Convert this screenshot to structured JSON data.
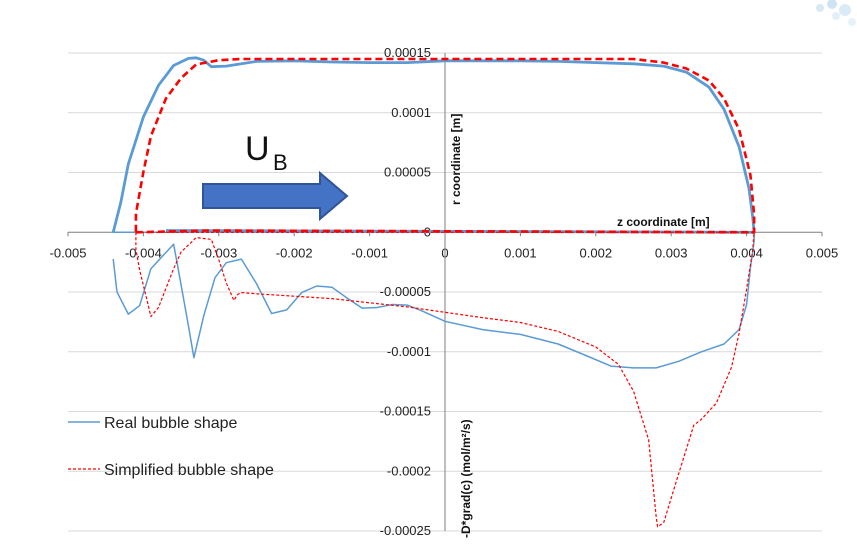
{
  "chart_data": {
    "type": "line",
    "xlim": [
      -0.005,
      0.005
    ],
    "ylim": [
      -0.00025,
      0.00015
    ],
    "x_ticks": [
      "-0.005",
      "-0.004",
      "-0.003",
      "-0.002",
      "-0.001",
      "0",
      "0.001",
      "0.002",
      "0.003",
      "0.004",
      "0.005"
    ],
    "y_ticks": [
      "0.00015",
      "0.0001",
      "0.00005",
      "0",
      "-0.00005",
      "-0.0001",
      "-0.00015",
      "-0.0002",
      "-0.00025"
    ],
    "x_tick_values": [
      -0.005,
      -0.004,
      -0.003,
      -0.002,
      -0.001,
      0,
      0.001,
      0.002,
      0.003,
      0.004,
      0.005
    ],
    "y_tick_values": [
      0.00015,
      0.0001,
      5e-05,
      0,
      -5e-05,
      -0.0001,
      -0.00015,
      -0.0002,
      -0.00025
    ],
    "xlabel": "z coordinate [m]",
    "ylabel_upper": "r coordinate [m]",
    "ylabel_lower": "-D*grad(c) (mol/m²/s)",
    "grid": true,
    "legend_position": "lower-left",
    "annotation": {
      "main": "U",
      "sub": "B"
    },
    "arrow_color": "#4472c4",
    "series": [
      {
        "name": "Real bubble shape",
        "color": "#5b9bd5",
        "dash": "solid",
        "values": [
          [
            -0.0044,
            -2.25e-05
          ],
          [
            -0.00435,
            -5e-05
          ],
          [
            -0.0042,
            -6.85e-05
          ],
          [
            -0.00405,
            -6.15e-05
          ],
          [
            -0.0039,
            -3.05e-05
          ],
          [
            -0.0037,
            1.5e-06
          ],
          [
            -0.0036,
            -1e-05
          ],
          [
            -0.00355,
            -2.65e-05
          ],
          [
            -0.0034,
            -7.9e-05
          ],
          [
            -0.00333,
            -0.000105
          ],
          [
            -0.0032,
            -7e-05
          ],
          [
            -0.00305,
            -3.8e-05
          ],
          [
            -0.0029,
            -2.55e-05
          ],
          [
            -0.0027,
            -2.25e-05
          ],
          [
            -0.0025,
            -4.3e-05
          ],
          [
            -0.0023,
            -6.8e-05
          ],
          [
            -0.0021,
            -6.5e-05
          ],
          [
            -0.0019,
            -5.05e-05
          ],
          [
            -0.0017,
            -4.5e-05
          ],
          [
            -0.0015,
            -4.6e-05
          ],
          [
            -0.0013,
            -5.5e-05
          ],
          [
            -0.0011,
            -6.35e-05
          ],
          [
            -0.0009,
            -6.3e-05
          ],
          [
            -0.0007,
            -6.05e-05
          ],
          [
            -0.0005,
            -6.1e-05
          ],
          [
            -0.0003,
            -6.6e-05
          ],
          [
            0.0,
            -7.45e-05
          ],
          [
            0.0005,
            -8.15e-05
          ],
          [
            0.001,
            -8.55e-05
          ],
          [
            0.0015,
            -9.35e-05
          ],
          [
            0.0019,
            -0.000104
          ],
          [
            0.0022,
            -0.000112
          ],
          [
            0.0025,
            -0.0001135
          ],
          [
            0.0028,
            -0.0001135
          ],
          [
            0.0031,
            -0.000108
          ],
          [
            0.0034,
            -0.0001
          ],
          [
            0.0037,
            -9.35e-05
          ],
          [
            0.0039,
            -8.15e-05
          ],
          [
            0.004,
            -6.05e-05
          ],
          [
            0.00405,
            -3e-05
          ],
          [
            0.0041,
            -7.5e-06
          ],
          [
            0.0041,
            0.0
          ],
          [
            0.00408,
            1.35e-05
          ],
          [
            0.00403,
            3.7e-05
          ],
          [
            0.0039,
            7.15e-05
          ],
          [
            0.0037,
            0.000103
          ],
          [
            0.0035,
            0.0001215
          ],
          [
            0.0032,
            0.000134
          ],
          [
            0.0029,
            0.000139
          ],
          [
            0.0025,
            0.000141
          ],
          [
            0.002,
            0.000142
          ],
          [
            0.0015,
            0.000143
          ],
          [
            0.001,
            0.0001435
          ],
          [
            0.0005,
            0.0001435
          ],
          [
            0.0,
            0.0001435
          ],
          [
            -0.0005,
            0.000142
          ],
          [
            -0.001,
            0.000142
          ],
          [
            -0.0015,
            0.0001425
          ],
          [
            -0.002,
            0.0001435
          ],
          [
            -0.0025,
            0.000143
          ],
          [
            -0.0027,
            0.000141
          ],
          [
            -0.0029,
            0.000139
          ],
          [
            -0.0031,
            0.0001385
          ],
          [
            -0.0032,
            0.000144
          ],
          [
            -0.0033,
            0.000146
          ],
          [
            -0.0034,
            0.0001455
          ],
          [
            -0.0036,
            0.0001395
          ],
          [
            -0.0038,
            0.000123
          ],
          [
            -0.004,
            9.65e-05
          ],
          [
            -0.0042,
            5.7e-05
          ],
          [
            -0.0043,
            2.5e-05
          ],
          [
            -0.0044,
            0.0
          ]
        ]
      },
      {
        "name": "Simplified bubble shape",
        "color": "#ff0000",
        "dash": "dashed",
        "values": [
          [
            -0.0041,
            0.0
          ],
          [
            -0.0041,
            -1.45e-05
          ],
          [
            -0.00405,
            -3.15e-05
          ],
          [
            -0.00395,
            -5.75e-05
          ],
          [
            -0.0039,
            -7.05e-05
          ],
          [
            -0.0038,
            -6.3e-05
          ],
          [
            -0.0036,
            -3.05e-05
          ],
          [
            -0.0035,
            -1.65e-05
          ],
          [
            -0.0033,
            -4.5e-06
          ],
          [
            -0.00315,
            1.5e-06
          ],
          [
            -0.0031,
            -6e-06
          ],
          [
            -0.003,
            -2.3e-05
          ],
          [
            -0.0029,
            -4.25e-05
          ],
          [
            -0.0028,
            -5.7e-05
          ],
          [
            -0.00275,
            -5.2e-05
          ],
          [
            -0.0027,
            -5.05e-05
          ],
          [
            -0.0025,
            -5.15e-05
          ],
          [
            -0.002,
            -5.35e-05
          ],
          [
            -0.0015,
            -5.55e-05
          ],
          [
            -0.001,
            -5.9e-05
          ],
          [
            -0.0005,
            -6.25e-05
          ],
          [
            0.0,
            -6.7e-05
          ],
          [
            0.0005,
            -7.15e-05
          ],
          [
            0.001,
            -7.55e-05
          ],
          [
            0.0015,
            -8.3e-05
          ],
          [
            0.002,
            -9.6e-05
          ],
          [
            0.0023,
            -0.0001105
          ],
          [
            0.0025,
            -0.000133
          ],
          [
            0.0027,
            -0.0001735
          ],
          [
            0.0028,
            -0.0002375
          ],
          [
            0.00282,
            -0.0002465
          ],
          [
            0.0029,
            -0.000243
          ],
          [
            0.0031,
            -0.000202
          ],
          [
            0.0033,
            -0.0001615
          ],
          [
            0.0034,
            -0.0001565
          ],
          [
            0.0036,
            -0.000143
          ],
          [
            0.0038,
            -0.000113
          ],
          [
            0.0039,
            -8.45e-05
          ],
          [
            0.004,
            -4.75e-05
          ],
          [
            0.00408,
            -1.6e-05
          ],
          [
            0.0041,
            0.0
          ],
          [
            0.0041,
            1.5e-05
          ],
          [
            0.00405,
            4.8e-05
          ],
          [
            0.0039,
            8.6e-05
          ],
          [
            0.0037,
            0.000112
          ],
          [
            0.0035,
            0.000127
          ],
          [
            0.0032,
            0.000137
          ],
          [
            0.0029,
            0.000142
          ],
          [
            0.0025,
            0.000145
          ],
          [
            0.002,
            0.000145
          ],
          [
            0.001,
            0.000145
          ],
          [
            0.0,
            0.000145
          ],
          [
            -0.001,
            0.000145
          ],
          [
            -0.002,
            0.000145
          ],
          [
            -0.0027,
            0.000145
          ],
          [
            -0.003,
            0.000144
          ],
          [
            -0.0033,
            0.0001405
          ],
          [
            -0.0035,
            0.000129
          ],
          [
            -0.0037,
            0.000112
          ],
          [
            -0.0039,
            8.05e-05
          ],
          [
            -0.004,
            5.05e-05
          ],
          [
            -0.0041,
            1.55e-05
          ],
          [
            -0.0041,
            0.0
          ]
        ]
      }
    ]
  }
}
